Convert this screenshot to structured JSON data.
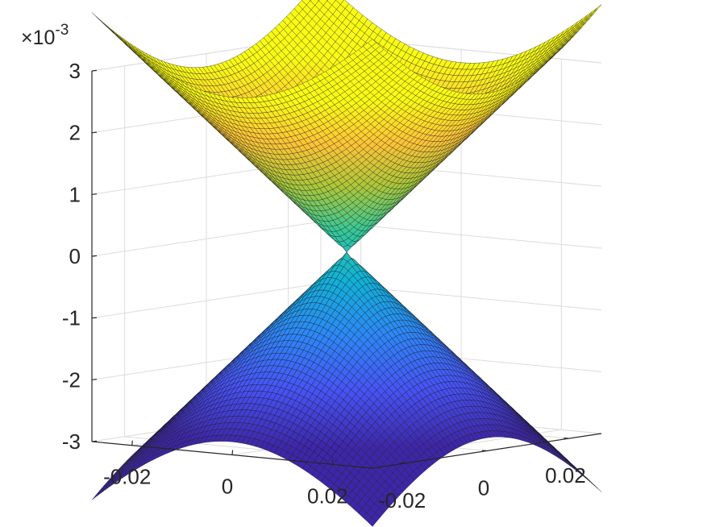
{
  "chart_data": {
    "type": "surface",
    "title": "",
    "xlabel": "",
    "ylabel": "",
    "zlabel": "",
    "z_exponent_label": "×10",
    "z_exponent_power": "-3",
    "x_ticks": [
      {
        "value": -0.02,
        "label": "-0.02"
      },
      {
        "value": 0,
        "label": "0"
      },
      {
        "value": 0.02,
        "label": "0.02"
      }
    ],
    "y_ticks": [
      {
        "value": -0.02,
        "label": "-0.02"
      },
      {
        "value": 0,
        "label": "0"
      },
      {
        "value": 0.02,
        "label": "0.02"
      }
    ],
    "z_ticks": [
      {
        "value": 3,
        "label": "3"
      },
      {
        "value": 2,
        "label": "2"
      },
      {
        "value": 1,
        "label": "1"
      },
      {
        "value": 0,
        "label": "0"
      },
      {
        "value": -1,
        "label": "-1"
      },
      {
        "value": -2,
        "label": "-2"
      },
      {
        "value": -3,
        "label": "-3"
      }
    ],
    "xlim": [
      -0.028,
      0.028
    ],
    "ylim": [
      -0.028,
      0.028
    ],
    "zlim": [
      -3,
      3
    ],
    "grid": true,
    "colormap": "parula",
    "surfaces": [
      {
        "name": "",
        "formula": "z = +k*sqrt(x^2+y^2)",
        "k_per_unit": 0.0996
      },
      {
        "name": "",
        "formula": "z = -k*sqrt(x^2+y^2)",
        "k_per_unit": 0.0996
      }
    ],
    "grid_points": 61
  }
}
